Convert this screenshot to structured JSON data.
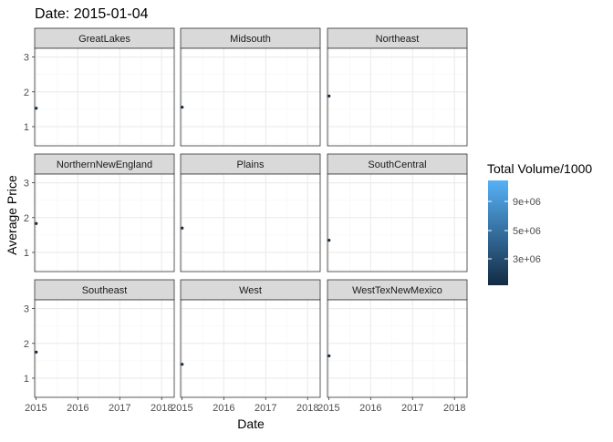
{
  "chart_data": {
    "type": "scatter",
    "title": "Date: 2015-01-04",
    "xlabel": "Date",
    "ylabel": "Average Price",
    "x_ticks": [
      "2015",
      "2016",
      "2017",
      "2018"
    ],
    "xlim": [
      2014.97,
      2018.3
    ],
    "y_ticks": [
      "1",
      "2",
      "3"
    ],
    "ylim": [
      0.45,
      3.25
    ],
    "grid": true,
    "facets": [
      {
        "name": "GreatLakes",
        "points": [
          {
            "x": "2015-01-04",
            "y": 1.53
          }
        ]
      },
      {
        "name": "Midsouth",
        "points": [
          {
            "x": "2015-01-04",
            "y": 1.56
          }
        ]
      },
      {
        "name": "Northeast",
        "points": [
          {
            "x": "2015-01-04",
            "y": 1.88
          }
        ]
      },
      {
        "name": "NorthernNewEngland",
        "points": [
          {
            "x": "2015-01-04",
            "y": 1.83
          }
        ]
      },
      {
        "name": "Plains",
        "points": [
          {
            "x": "2015-01-04",
            "y": 1.7
          }
        ]
      },
      {
        "name": "SouthCentral",
        "points": [
          {
            "x": "2015-01-04",
            "y": 1.35
          }
        ]
      },
      {
        "name": "Southeast",
        "points": [
          {
            "x": "2015-01-04",
            "y": 1.75
          }
        ]
      },
      {
        "name": "West",
        "points": [
          {
            "x": "2015-01-04",
            "y": 1.4
          }
        ]
      },
      {
        "name": "WestTexNewMexico",
        "points": [
          {
            "x": "2015-01-04",
            "y": 1.64
          }
        ]
      }
    ],
    "legend": {
      "title": "Total Volume/1000",
      "type": "colorbar",
      "placement": "right",
      "labels": [
        "9e+06",
        "5e+06",
        "3e+06"
      ],
      "color_low": "#132B43",
      "color_high": "#56B1F7"
    },
    "colors": {
      "strip_fill": "#d9d9d9",
      "panel_border": "#333333",
      "grid_major": "#ebebeb",
      "grid_minor": "#f5f5f5",
      "point": "#132B43",
      "axis_text": "#4d4d4d"
    }
  }
}
